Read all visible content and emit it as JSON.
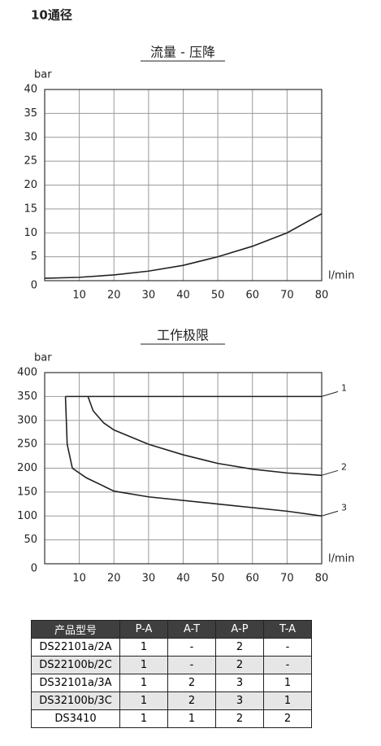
{
  "page_title": "10通径",
  "chart_data": [
    {
      "type": "line",
      "title": "流量 - 压降",
      "y_label": "bar",
      "x_label": "l/min",
      "xlim": [
        0,
        80
      ],
      "xticks": [
        10,
        20,
        30,
        40,
        50,
        60,
        70,
        80
      ],
      "ylim": [
        0,
        40
      ],
      "yticks": [
        0,
        5,
        10,
        15,
        20,
        25,
        30,
        35,
        40
      ],
      "grid": true,
      "series": [
        {
          "color": "#222222",
          "x": [
            0,
            10,
            20,
            30,
            40,
            50,
            60,
            70,
            80
          ],
          "values": [
            0.5,
            0.7,
            1.2,
            2.0,
            3.2,
            5.0,
            7.2,
            10.0,
            14.0
          ]
        }
      ]
    },
    {
      "type": "line",
      "title": "工作极限",
      "y_label": "bar",
      "x_label": "l/min",
      "xlim": [
        0,
        80
      ],
      "xticks": [
        10,
        20,
        30,
        40,
        50,
        60,
        70,
        80
      ],
      "ylim": [
        0,
        400
      ],
      "yticks": [
        0,
        50,
        100,
        150,
        200,
        250,
        300,
        350,
        400
      ],
      "grid": true,
      "series": [
        {
          "name": "1",
          "color": "#222222",
          "x": [
            6,
            80
          ],
          "values": [
            350,
            350
          ]
        },
        {
          "name": "2",
          "color": "#222222",
          "x": [
            12.5,
            14,
            17,
            20,
            30,
            40,
            50,
            60,
            70,
            80
          ],
          "values": [
            350,
            320,
            295,
            280,
            250,
            228,
            210,
            198,
            190,
            185
          ]
        },
        {
          "name": "3",
          "color": "#222222",
          "x": [
            6,
            6.5,
            8,
            12,
            20,
            30,
            50,
            70,
            80
          ],
          "values": [
            350,
            250,
            200,
            180,
            152,
            140,
            125,
            110,
            100
          ]
        }
      ]
    }
  ],
  "table": {
    "header": [
      "产品型号",
      "P-A",
      "A-T",
      "A-P",
      "T-A"
    ],
    "rows": [
      [
        "DS22101a/2A",
        "1",
        "-",
        "2",
        "-"
      ],
      [
        "DS22100b/2C",
        "1",
        "-",
        "2",
        "-"
      ],
      [
        "DS32101a/3A",
        "1",
        "2",
        "3",
        "1"
      ],
      [
        "DS32100b/3C",
        "1",
        "2",
        "3",
        "1"
      ],
      [
        "DS3410",
        "1",
        "1",
        "2",
        "2"
      ]
    ]
  }
}
